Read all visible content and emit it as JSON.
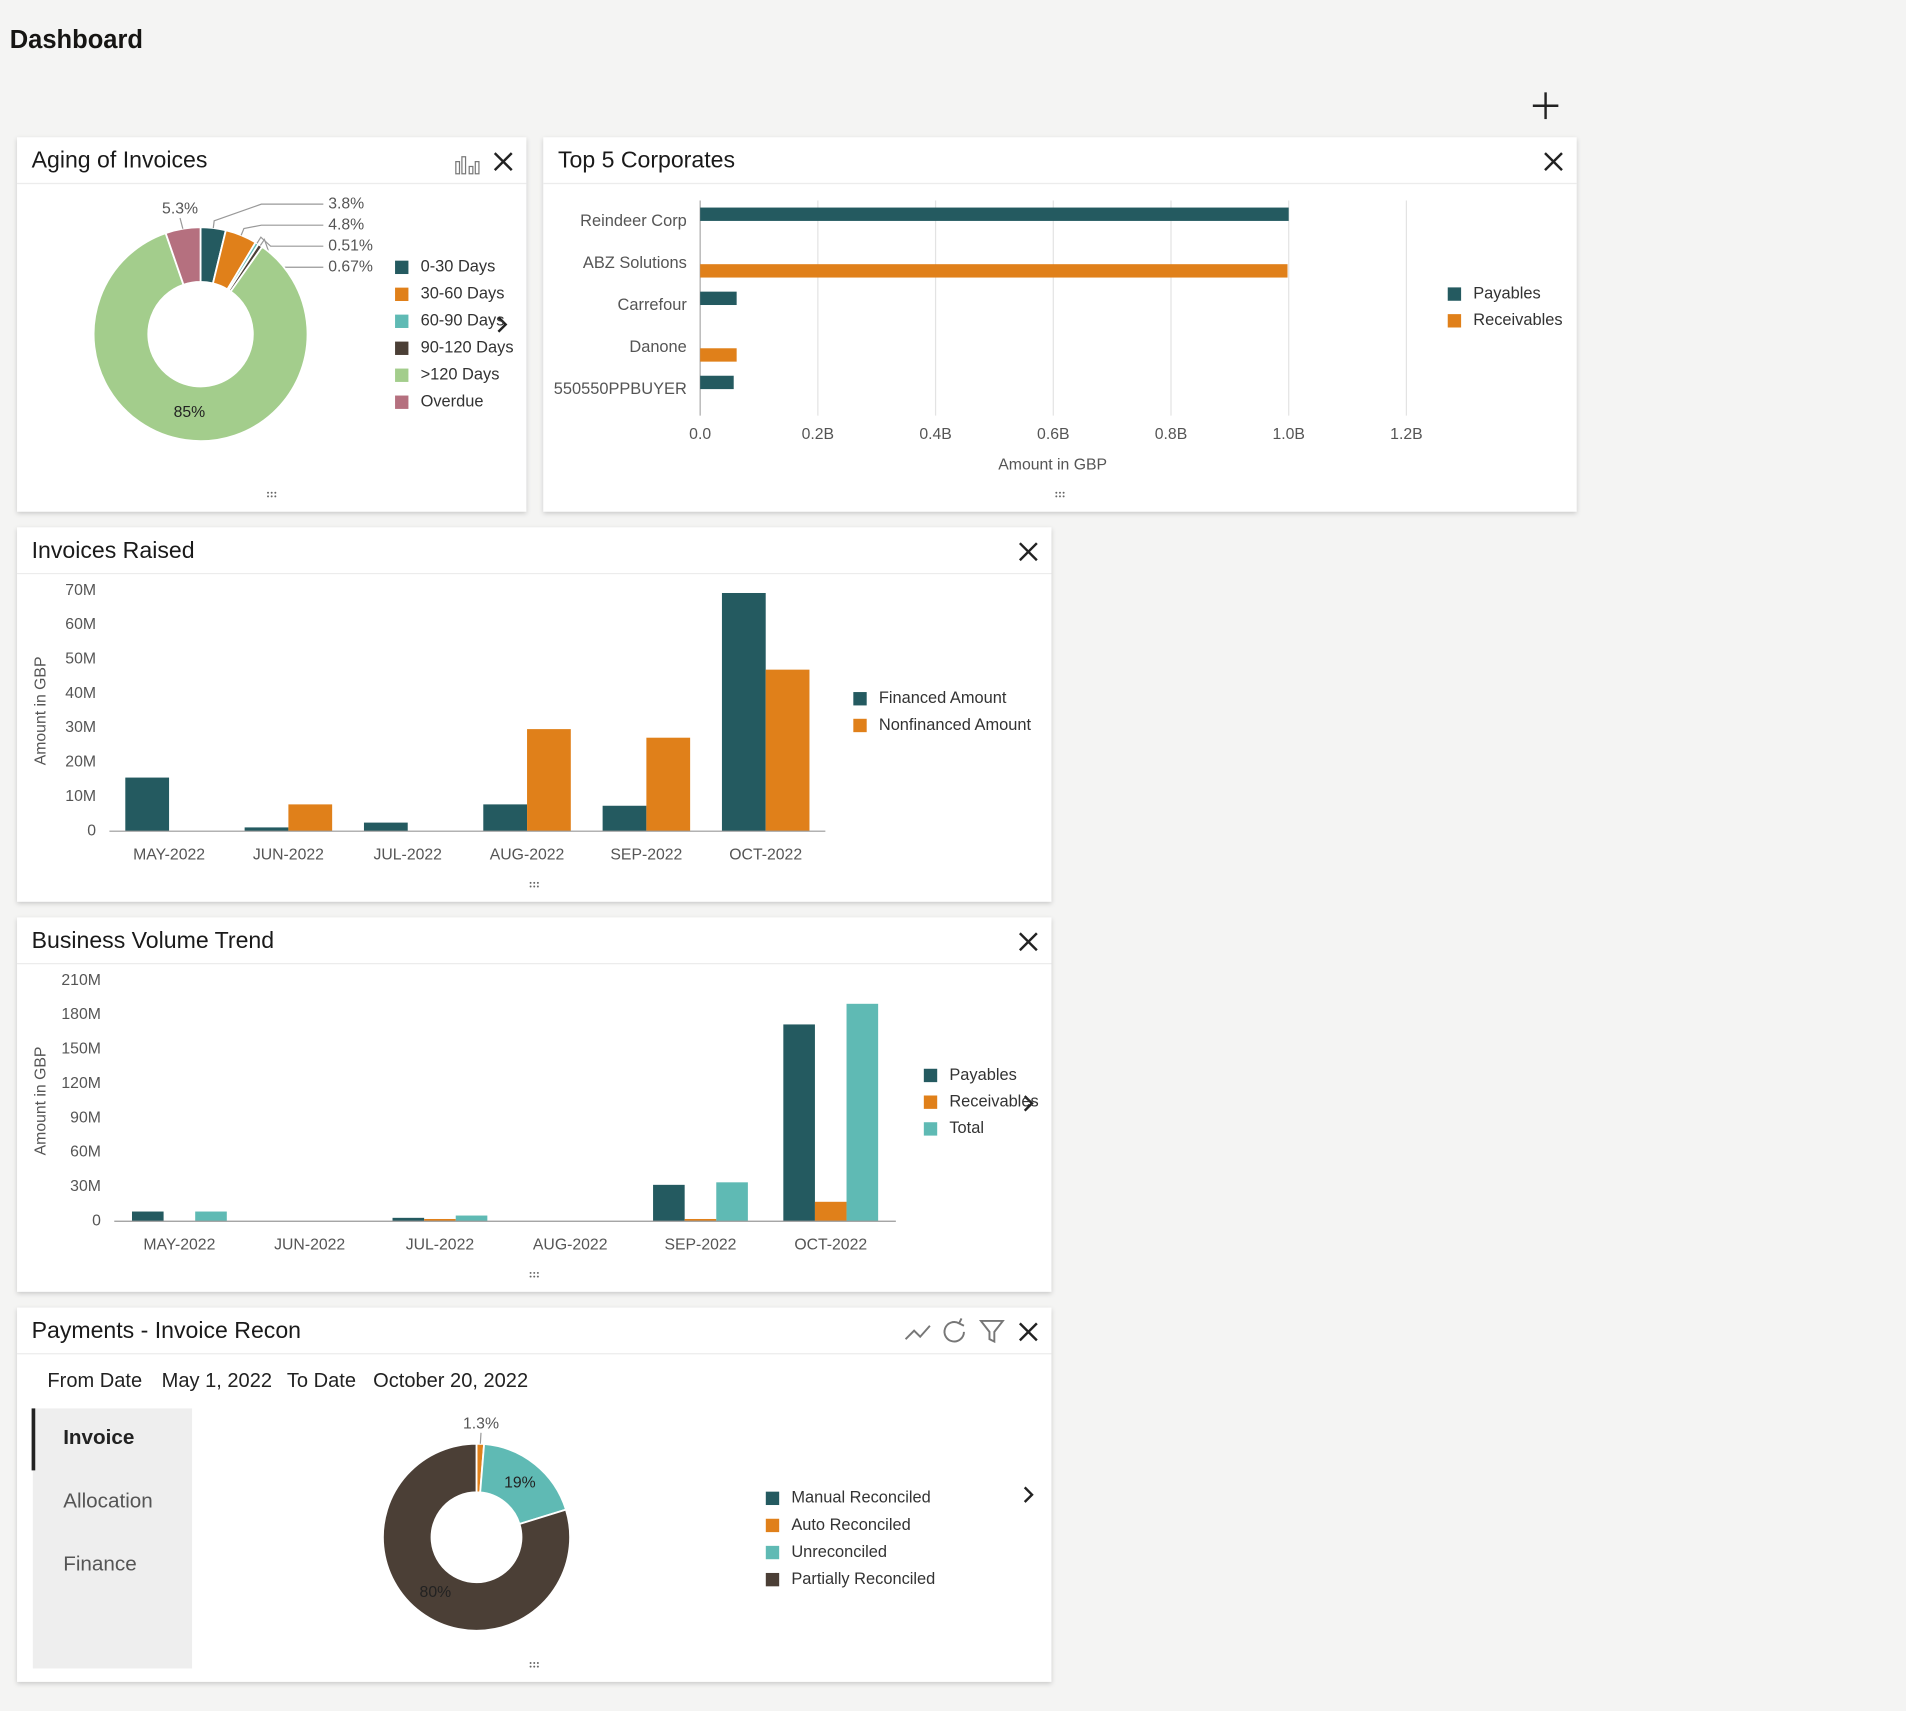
{
  "header": {
    "title": "Dashboard"
  },
  "chart_data": [
    {
      "type": "pie",
      "title": "Aging of Invoices",
      "categories": [
        "0-30 Days",
        "30-60 Days",
        "60-90 Days",
        "90-120 Days",
        ">120 Days",
        "Overdue"
      ],
      "values": [
        3.8,
        4.8,
        0.51,
        0.67,
        85,
        5.3
      ],
      "value_labels": [
        "3.8%",
        "4.8%",
        "0.51%",
        "0.67%",
        "85%",
        "5.3%"
      ],
      "colors": [
        "#245a60",
        "#e0801a",
        "#5fbab4",
        "#4b3f36",
        "#a3cd8c",
        "#b5707f"
      ]
    },
    {
      "type": "bar",
      "orientation": "horizontal",
      "title": "Top 5 Corporates",
      "categories": [
        "Reindeer Corp",
        "ABZ Solutions",
        "Carrefour",
        "Danone",
        "550550PPBUYER"
      ],
      "series": [
        {
          "name": "Payables",
          "color": "#245a60",
          "values": [
            1.0,
            null,
            0.062,
            null,
            0.057
          ]
        },
        {
          "name": "Receivables",
          "color": "#e0801a",
          "values": [
            null,
            0.998,
            null,
            0.062,
            null
          ]
        }
      ],
      "xlim": [
        0,
        1.2
      ],
      "xticks": [
        {
          "value": 0,
          "label": "0.0"
        },
        {
          "value": 0.2,
          "label": "0.2B"
        },
        {
          "value": 0.4,
          "label": "0.4B"
        },
        {
          "value": 0.6,
          "label": "0.6B"
        },
        {
          "value": 0.8,
          "label": "0.8B"
        },
        {
          "value": 1.0,
          "label": "1.0B"
        },
        {
          "value": 1.2,
          "label": "1.2B"
        }
      ],
      "xlabel": "Amount in GBP",
      "grid": true
    },
    {
      "type": "bar",
      "title": "Invoices Raised",
      "categories": [
        "MAY-2022",
        "JUN-2022",
        "JUL-2022",
        "AUG-2022",
        "SEP-2022",
        "OCT-2022"
      ],
      "series": [
        {
          "name": "Financed Amount",
          "color": "#245a60",
          "values": [
            15.6,
            1.1,
            2.5,
            7.8,
            7.4,
            69.3
          ]
        },
        {
          "name": "Nonfinanced Amount",
          "color": "#e0801a",
          "values": [
            0,
            7.8,
            0,
            29.7,
            27.2,
            47.0
          ]
        }
      ],
      "ylim": [
        0,
        70
      ],
      "yticks": [
        0,
        {
          "value": 10,
          "label": "10M"
        },
        {
          "value": 20,
          "label": "20M"
        },
        {
          "value": 30,
          "label": "30M"
        },
        {
          "value": 40,
          "label": "40M"
        },
        {
          "value": 50,
          "label": "50M"
        },
        {
          "value": 60,
          "label": "60M"
        },
        {
          "value": 70,
          "label": "70M"
        }
      ],
      "ylabel": "Amount in GBP",
      "grid": false
    },
    {
      "type": "bar",
      "title": "Business Volume Trend",
      "categories": [
        "MAY-2022",
        "JUN-2022",
        "JUL-2022",
        "AUG-2022",
        "SEP-2022",
        "OCT-2022"
      ],
      "series": [
        {
          "name": "Payables",
          "color": "#245a60",
          "values": [
            8.5,
            0,
            3,
            0,
            31.8,
            171.8
          ]
        },
        {
          "name": "Receivables",
          "color": "#e0801a",
          "values": [
            0,
            0,
            2,
            0,
            2,
            17
          ]
        },
        {
          "name": "Total",
          "color": "#5fbab4",
          "values": [
            8.5,
            0,
            5,
            0,
            34,
            189.8
          ]
        }
      ],
      "ylim": [
        0,
        210
      ],
      "yticks": [
        0,
        {
          "value": 30,
          "label": "30M"
        },
        {
          "value": 60,
          "label": "60M"
        },
        {
          "value": 90,
          "label": "90M"
        },
        {
          "value": 120,
          "label": "120M"
        },
        {
          "value": 150,
          "label": "150M"
        },
        {
          "value": 180,
          "label": "180M"
        },
        {
          "value": 210,
          "label": "210M"
        }
      ],
      "ylabel": "Amount in GBP",
      "grid": false
    },
    {
      "type": "pie",
      "title": "Payments - Invoice Recon",
      "filters": {
        "from_label": "From Date",
        "from_value": "May 1, 2022",
        "to_label": "To Date",
        "to_value": "October 20, 2022"
      },
      "tabs": [
        "Invoice",
        "Allocation",
        "Finance"
      ],
      "categories": [
        "Manual Reconciled",
        "Auto Reconciled",
        "Unreconciled",
        "Partially Reconciled"
      ],
      "values": [
        0,
        1.3,
        19,
        80
      ],
      "value_labels": [
        null,
        "1.3%",
        "19%",
        "80%"
      ],
      "colors": [
        "#245a60",
        "#e0801a",
        "#5fbab4",
        "#4b3f36"
      ]
    }
  ]
}
